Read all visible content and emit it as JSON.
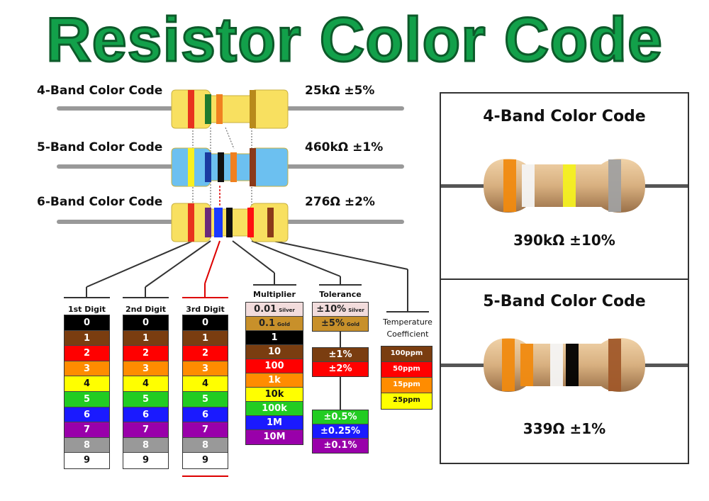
{
  "title": "Resistor Color Code",
  "examples": [
    {
      "label": "4-Band Color Code",
      "value": "25kΩ ±5%",
      "body": "#f8e060",
      "bands": [
        "#e8321e",
        "#1e7a2e",
        "#f08020",
        "#b88a1c"
      ]
    },
    {
      "label": "5-Band Color Code",
      "value": "460kΩ ±1%",
      "body": "#6cc0f0",
      "bands": [
        "#f8f020",
        "#1a3aa0",
        "#111111",
        "#f08020",
        "#8a3a1a"
      ]
    },
    {
      "label": "6-Band Color Code",
      "value": "276Ω ±2%",
      "body": "#f8e060",
      "bands": [
        "#e8321e",
        "#6a2a7a",
        "#1a3aff",
        "#111111",
        "#ff1010",
        "#8a3a1a"
      ]
    }
  ],
  "digit_columns": [
    {
      "header": "1st Digit"
    },
    {
      "header": "2nd Digit"
    },
    {
      "header": "3rd Digit"
    }
  ],
  "digits": [
    {
      "v": "0",
      "bg": "#000000",
      "fg": "#ffffff"
    },
    {
      "v": "1",
      "bg": "#7a3d10",
      "fg": "#ffffff"
    },
    {
      "v": "2",
      "bg": "#ff0000",
      "fg": "#ffffff"
    },
    {
      "v": "3",
      "bg": "#ff8c00",
      "fg": "#ffffff"
    },
    {
      "v": "4",
      "bg": "#ffff00",
      "fg": "#111111"
    },
    {
      "v": "5",
      "bg": "#22cc22",
      "fg": "#ffffff"
    },
    {
      "v": "6",
      "bg": "#1a1aff",
      "fg": "#ffffff"
    },
    {
      "v": "7",
      "bg": "#9900aa",
      "fg": "#ffffff"
    },
    {
      "v": "8",
      "bg": "#999999",
      "fg": "#ffffff"
    },
    {
      "v": "9",
      "bg": "#ffffff",
      "fg": "#111111"
    }
  ],
  "multiplier": {
    "header": "Multiplier",
    "rows": [
      {
        "v": "0.01",
        "note": "Silver",
        "bg": "#f2dcdc",
        "fg": "#222"
      },
      {
        "v": "0.1",
        "note": "Gold",
        "bg": "#c8902a",
        "fg": "#222"
      },
      {
        "v": "1",
        "bg": "#000000",
        "fg": "#fff"
      },
      {
        "v": "10",
        "bg": "#7a3d10",
        "fg": "#fff"
      },
      {
        "v": "100",
        "bg": "#ff0000",
        "fg": "#fff"
      },
      {
        "v": "1k",
        "bg": "#ff8c00",
        "fg": "#fff"
      },
      {
        "v": "10k",
        "bg": "#ffff00",
        "fg": "#111"
      },
      {
        "v": "100k",
        "bg": "#22cc22",
        "fg": "#fff"
      },
      {
        "v": "1M",
        "bg": "#1a1aff",
        "fg": "#fff"
      },
      {
        "v": "10M",
        "bg": "#9900aa",
        "fg": "#fff"
      }
    ]
  },
  "tolerance": {
    "header": "Tolerance",
    "groups": [
      [
        {
          "v": "±10%",
          "note": "Silver",
          "bg": "#f2dcdc",
          "fg": "#222"
        },
        {
          "v": "±5%",
          "note": "Gold",
          "bg": "#c8902a",
          "fg": "#222"
        }
      ],
      [
        {
          "v": "±1%",
          "bg": "#7a3d10",
          "fg": "#fff"
        },
        {
          "v": "±2%",
          "bg": "#ff0000",
          "fg": "#fff"
        }
      ],
      [
        {
          "v": "±0.5%",
          "bg": "#22cc22",
          "fg": "#fff"
        },
        {
          "v": "±0.25%",
          "bg": "#1a1aff",
          "fg": "#fff"
        },
        {
          "v": "±0.1%",
          "bg": "#9900aa",
          "fg": "#fff"
        }
      ]
    ]
  },
  "temperature": {
    "header_line1": "Temperature",
    "header_line2": "Coefficient",
    "rows": [
      {
        "v": "100ppm",
        "bg": "#7a3d10",
        "fg": "#fff"
      },
      {
        "v": "50ppm",
        "bg": "#ff0000",
        "fg": "#fff"
      },
      {
        "v": "15ppm",
        "bg": "#ff8c00",
        "fg": "#fff"
      },
      {
        "v": "25ppm",
        "bg": "#ffff00",
        "fg": "#111"
      }
    ]
  },
  "panels": [
    {
      "title": "4-Band Color Code",
      "value": "390kΩ ±10%",
      "bands": [
        "#f08a10",
        "#f4f4f4",
        "#f4f020",
        "#a0a0a0"
      ]
    },
    {
      "title": "5-Band Color Code",
      "value": "339Ω ±1%",
      "bands": [
        "#f08a10",
        "#f08a10",
        "#f4f4f4",
        "#000000",
        "#a0582a"
      ]
    }
  ]
}
